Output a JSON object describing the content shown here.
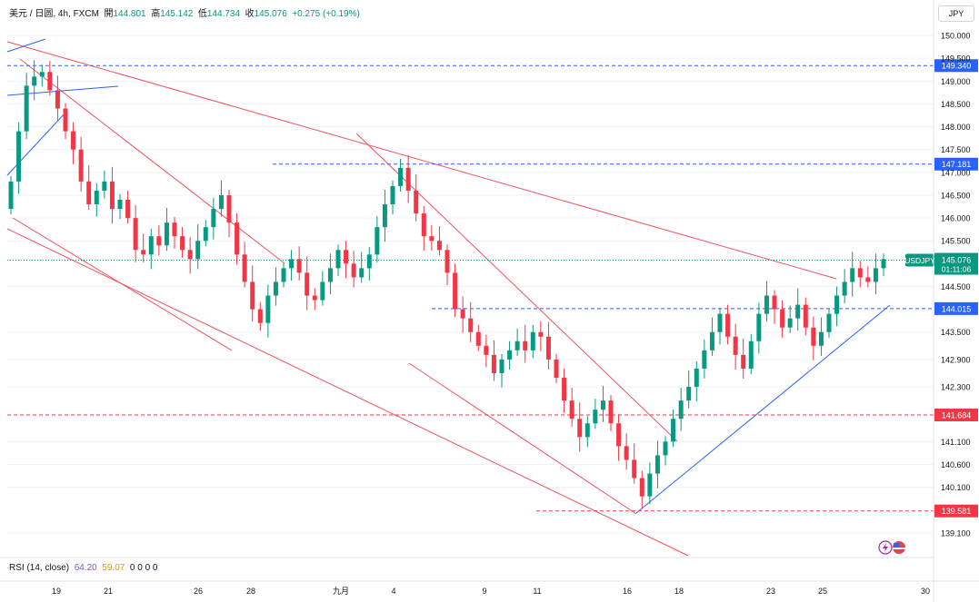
{
  "header": {
    "symbol": "美元 / 日圆, 4h, FXCM",
    "o_label": "開",
    "o": "144.801",
    "h_label": "高",
    "h": "145.142",
    "l_label": "低",
    "l": "144.734",
    "c_label": "收",
    "c": "145.076",
    "change": "+0.275 (+0.19%)"
  },
  "currency": "JPY",
  "rsi": {
    "label": "RSI (14, close)",
    "v1": "64.20",
    "v2": "59.07",
    "rest": "0 0 0 0"
  },
  "colors": {
    "up": "#089981",
    "down": "#f23645",
    "trend_red": "#f0525f",
    "trend_blue": "#2962ff",
    "level_blue": "#2962ff",
    "level_red": "#f23645"
  },
  "chart_data": {
    "type": "candlestick",
    "x_ticks": [
      "19",
      "21",
      "26",
      "28",
      "九月",
      "4",
      "9",
      "11",
      "16",
      "18",
      "23",
      "25",
      "30"
    ],
    "y_ticks": [
      "150.000",
      "149.500",
      "149.000",
      "148.500",
      "148.000",
      "147.500",
      "147.000",
      "146.500",
      "146.000",
      "145.500",
      "144.500",
      "143.500",
      "142.900",
      "142.300",
      "141.100",
      "140.600",
      "140.100",
      "139.100"
    ],
    "ylim": [
      138.6,
      150.3
    ],
    "levels": [
      {
        "value": "149.340",
        "color": "blue"
      },
      {
        "value": "147.181",
        "color": "blue"
      },
      {
        "value": "144.015",
        "color": "blue"
      },
      {
        "value": "141.684",
        "color": "red"
      },
      {
        "value": "139.581",
        "color": "red"
      }
    ],
    "last_price": {
      "symbol": "USDJPY",
      "value": "145.076",
      "countdown": "01:11:06"
    },
    "closes": [
      146.8,
      147.9,
      148.9,
      149.1,
      149.2,
      148.8,
      148.4,
      147.9,
      147.5,
      146.8,
      146.3,
      146.6,
      146.8,
      146.2,
      146.4,
      146.0,
      145.3,
      145.2,
      145.6,
      145.4,
      145.9,
      145.6,
      145.3,
      145.1,
      145.5,
      145.8,
      146.2,
      146.5,
      145.9,
      145.2,
      144.6,
      144.0,
      143.7,
      144.3,
      144.6,
      144.9,
      145.1,
      144.8,
      144.3,
      144.2,
      144.6,
      144.9,
      145.3,
      145.0,
      144.7,
      144.9,
      145.2,
      145.8,
      146.3,
      146.7,
      147.1,
      146.6,
      146.1,
      145.6,
      145.5,
      145.3,
      144.8,
      144.0,
      143.8,
      143.5,
      143.2,
      143.0,
      142.6,
      142.9,
      143.1,
      143.3,
      143.1,
      143.5,
      143.4,
      142.9,
      142.5,
      142.0,
      141.6,
      141.2,
      141.5,
      141.8,
      142.0,
      141.5,
      141.0,
      140.7,
      140.3,
      139.9,
      140.4,
      140.8,
      141.1,
      141.6,
      142.0,
      142.3,
      142.7,
      143.1,
      143.5,
      143.9,
      143.4,
      143.0,
      142.7,
      143.3,
      143.9,
      144.3,
      144.0,
      143.6,
      143.8,
      144.1,
      143.6,
      143.2,
      143.5,
      143.9,
      144.3,
      144.6,
      144.9,
      144.7,
      144.6,
      144.9,
      145.1
    ]
  }
}
